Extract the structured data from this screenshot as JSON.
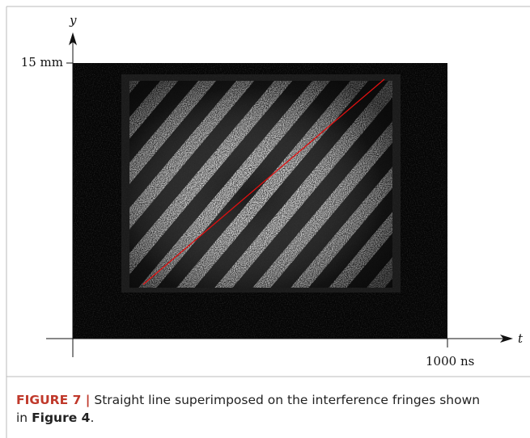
{
  "figure": {
    "axes": {
      "y_label": "y",
      "x_label": "t",
      "y_tick": "15 mm",
      "x_tick": "1000 ns"
    }
  },
  "caption": {
    "label": "FIGURE 7 |",
    "text": " Straight line superimposed on the interference fringes shown in ",
    "ref": "Figure 4",
    "end": "."
  }
}
